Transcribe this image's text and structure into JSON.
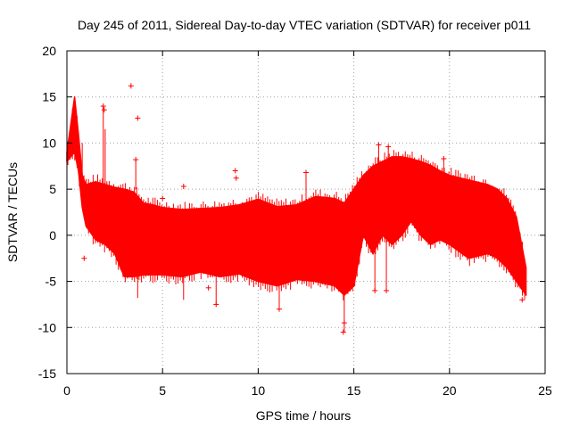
{
  "chart_data": {
    "type": "scatter",
    "title": "Day 245 of 2011, Sidereal Day-to-day VTEC variation (SDTVAR) for receiver p011",
    "xlabel": "GPS time / hours",
    "ylabel": "SDTVAR / TECUs",
    "xlim": [
      0,
      25
    ],
    "ylim": [
      -15,
      20
    ],
    "xticks": [
      0,
      5,
      10,
      15,
      20,
      25
    ],
    "xtick_labels": [
      "0",
      "5",
      "10",
      "15",
      "20",
      "25"
    ],
    "yticks": [
      -15,
      -10,
      -5,
      0,
      5,
      10,
      15,
      20
    ],
    "ytick_labels": [
      "-15",
      "-10",
      "-5",
      "0",
      "5",
      "10",
      "15",
      "20"
    ],
    "grid": true,
    "marker": "+",
    "color": "#ff0000",
    "envelope": {
      "hours": [
        0,
        0.2,
        0.4,
        0.6,
        0.8,
        1.0,
        1.5,
        2.0,
        2.5,
        3.0,
        3.5,
        4.0,
        4.5,
        5.0,
        6.0,
        7.0,
        8.0,
        9.0,
        10.0,
        11.0,
        12.0,
        13.0,
        14.0,
        14.5,
        15.0,
        15.5,
        16.0,
        16.5,
        17.0,
        17.5,
        18.0,
        18.5,
        19.0,
        19.5,
        20.0,
        21.0,
        22.0,
        22.5,
        23.0,
        23.5,
        24.0
      ],
      "upper": [
        9,
        12,
        15,
        11,
        6.5,
        5.5,
        5.8,
        5.5,
        5.2,
        5.0,
        4.7,
        3.5,
        3.3,
        3.0,
        2.8,
        2.9,
        3.0,
        3.3,
        3.9,
        3.1,
        3.3,
        4.2,
        4.0,
        3.5,
        5.0,
        6.5,
        7.5,
        8.0,
        8.5,
        8.5,
        8.3,
        8.0,
        7.6,
        7.0,
        6.5,
        6.0,
        5.5,
        5.0,
        4.0,
        2.0,
        -3.5
      ],
      "lower": [
        8,
        8.5,
        9,
        7,
        3.0,
        1.0,
        -0.5,
        -1.0,
        -2.0,
        -4.5,
        -4.5,
        -4.3,
        -4.3,
        -4.3,
        -4.5,
        -4.0,
        -4.5,
        -4.2,
        -5.0,
        -5.5,
        -4.8,
        -5.0,
        -5.5,
        -6.5,
        -5.5,
        0.0,
        -2.0,
        0.0,
        -1.0,
        0.0,
        1.5,
        0.0,
        -1.0,
        -0.5,
        -1.0,
        -2.5,
        -2.0,
        -2.5,
        -3.5,
        -5.0,
        -6.5
      ]
    },
    "outliers": [
      {
        "x": 0.9,
        "y": -2.5
      },
      {
        "x": 1.9,
        "y": 14.0
      },
      {
        "x": 1.95,
        "y": 13.6
      },
      {
        "x": 3.35,
        "y": 16.2
      },
      {
        "x": 3.7,
        "y": 12.7
      },
      {
        "x": 3.6,
        "y": 8.2
      },
      {
        "x": 5.0,
        "y": 4.0
      },
      {
        "x": 6.1,
        "y": 5.3
      },
      {
        "x": 7.4,
        "y": -5.7
      },
      {
        "x": 7.8,
        "y": -7.5
      },
      {
        "x": 8.8,
        "y": 7.0
      },
      {
        "x": 8.85,
        "y": 6.2
      },
      {
        "x": 11.1,
        "y": -8.0
      },
      {
        "x": 12.5,
        "y": 6.8
      },
      {
        "x": 14.45,
        "y": -10.5
      },
      {
        "x": 14.5,
        "y": -9.5
      },
      {
        "x": 16.3,
        "y": 9.8
      },
      {
        "x": 16.1,
        "y": -6.0
      },
      {
        "x": 16.8,
        "y": 9.6
      },
      {
        "x": 16.7,
        "y": -6.0
      },
      {
        "x": 19.7,
        "y": 8.3
      },
      {
        "x": 23.8,
        "y": -7.0
      }
    ],
    "spikes": [
      {
        "x": 0.8,
        "y_min": 5.0,
        "y_max": 10.0
      },
      {
        "x": 1.9,
        "y_min": 4.0,
        "y_max": 14.0
      },
      {
        "x": 2.0,
        "y_min": 5.0,
        "y_max": 11.5
      },
      {
        "x": 3.6,
        "y_min": 5.0,
        "y_max": 8.2
      },
      {
        "x": 3.7,
        "y_min": -6.8,
        "y_max": -3.5
      },
      {
        "x": 6.1,
        "y_min": -7.0,
        "y_max": -3.5
      },
      {
        "x": 7.8,
        "y_min": -7.5,
        "y_max": -4.0
      },
      {
        "x": 11.1,
        "y_min": -8.0,
        "y_max": -4.5
      },
      {
        "x": 12.5,
        "y_min": 3.0,
        "y_max": 6.8
      },
      {
        "x": 14.5,
        "y_min": -10.5,
        "y_max": -5.0
      },
      {
        "x": 16.1,
        "y_min": -6.0,
        "y_max": 0.0
      },
      {
        "x": 16.7,
        "y_min": -6.0,
        "y_max": -0.5
      },
      {
        "x": 16.3,
        "y_min": 7.0,
        "y_max": 9.8
      },
      {
        "x": 16.8,
        "y_min": 7.5,
        "y_max": 9.6
      },
      {
        "x": 19.7,
        "y_min": 6.0,
        "y_max": 8.3
      }
    ]
  }
}
